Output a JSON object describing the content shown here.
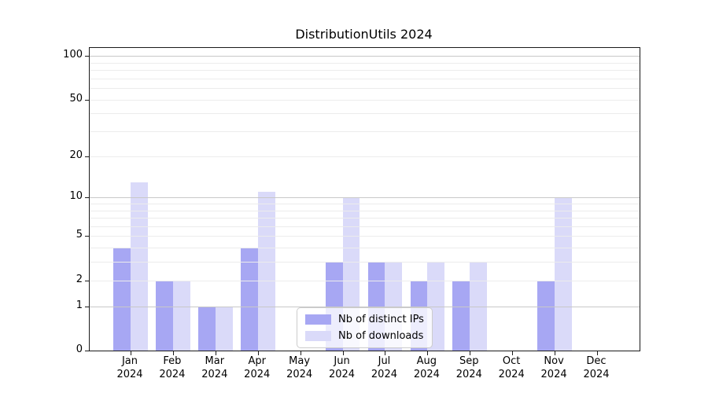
{
  "chart_data": {
    "type": "bar",
    "title": "DistributionUtils 2024",
    "categories": [
      "Jan 2024",
      "Feb 2024",
      "Mar 2024",
      "Apr 2024",
      "May 2024",
      "Jun 2024",
      "Jul 2024",
      "Aug 2024",
      "Sep 2024",
      "Oct 2024",
      "Nov 2024",
      "Dec 2024"
    ],
    "series": [
      {
        "name": "Nb of distinct IPs",
        "color": "#a7a7f3",
        "values": [
          4,
          2,
          1,
          4,
          0,
          3,
          3,
          2,
          2,
          0,
          2,
          0
        ]
      },
      {
        "name": "Nb of downloads",
        "color": "#dadaf9",
        "values": [
          13,
          2,
          1,
          11,
          0,
          10,
          3,
          3,
          3,
          0,
          10,
          0
        ]
      }
    ],
    "yscale": "log1p",
    "ylim": [
      0,
      113.5
    ],
    "ytick_values": [
      0,
      1,
      2,
      5,
      10,
      20,
      50,
      100
    ],
    "ytick_labels": [
      "0",
      "1",
      "2",
      "5",
      "10",
      "20",
      "50",
      "100"
    ],
    "major_grid_values": [
      1,
      10,
      100
    ],
    "minor_grid_values": [
      2,
      3,
      4,
      5,
      6,
      7,
      8,
      9,
      20,
      30,
      40,
      50,
      60,
      70,
      80,
      90
    ],
    "grid": true,
    "legend_position": "lower center",
    "colors": {
      "axis": "#1a1a1a",
      "major_grid": "#c8c8c8",
      "minor_grid": "#ececec",
      "text": "#000000",
      "legend_border": "#cccccc"
    }
  }
}
